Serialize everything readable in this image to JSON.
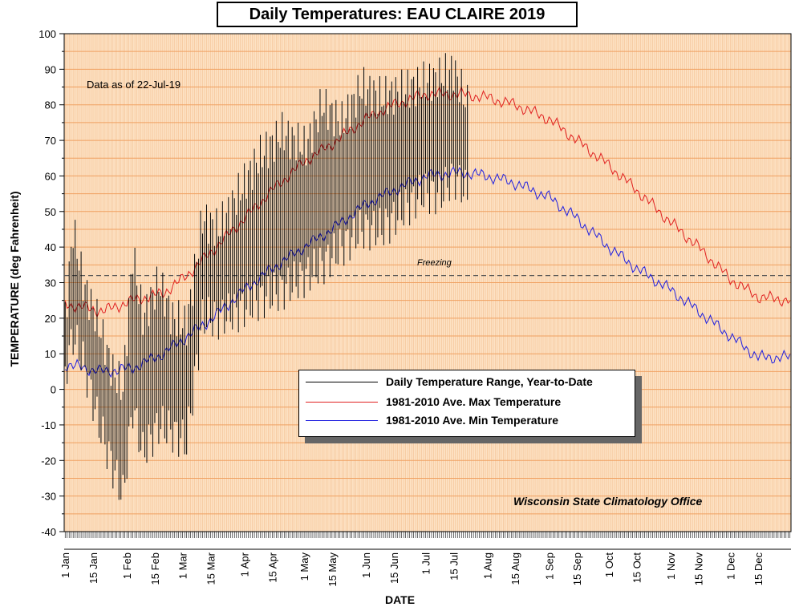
{
  "chart_data": {
    "type": "line",
    "title": "Daily Temperatures: EAU CLAIRE 2019",
    "subtitle": "Data as of 22-Jul-19",
    "xlabel": "DATE",
    "ylabel": "TEMPERATURE (deg Fahrenheit)",
    "ylim": [
      -40,
      100
    ],
    "yticks": [
      -40,
      -30,
      -20,
      -10,
      0,
      10,
      20,
      30,
      40,
      50,
      60,
      70,
      80,
      90,
      100
    ],
    "xtick_labels": [
      "1 Jan",
      "15 Jan",
      "1 Feb",
      "15 Feb",
      "1 Mar",
      "15 Mar",
      "1 Apr",
      "15 Apr",
      "1 May",
      "15 May",
      "1 Jun",
      "15 Jun",
      "1 Jul",
      "15 Jul",
      "1 Aug",
      "15 Aug",
      "1 Sep",
      "15 Sep",
      "1 Oct",
      "15 Oct",
      "1 Nov",
      "15 Nov",
      "1 Dec",
      "15 Dec"
    ],
    "xtick_days": [
      1,
      15,
      32,
      46,
      60,
      74,
      91,
      105,
      121,
      135,
      152,
      166,
      182,
      196,
      213,
      227,
      244,
      258,
      274,
      288,
      305,
      319,
      335,
      349
    ],
    "grid": true,
    "legend_position": "center-right",
    "reference_line": {
      "label": "Freezing",
      "value": 32,
      "color": "#555555"
    },
    "series": [
      {
        "name": "Daily Temperature Range, Year-to-Date",
        "color": "#000000",
        "kind": "range",
        "keypoints": [
          {
            "day": 1,
            "min": 5,
            "max": 20
          },
          {
            "day": 5,
            "min": 15,
            "max": 45
          },
          {
            "day": 10,
            "min": 8,
            "max": 30
          },
          {
            "day": 18,
            "min": -10,
            "max": 18
          },
          {
            "day": 25,
            "min": -22,
            "max": 5
          },
          {
            "day": 30,
            "min": -30,
            "max": 0
          },
          {
            "day": 35,
            "min": -5,
            "max": 38
          },
          {
            "day": 40,
            "min": -18,
            "max": 20
          },
          {
            "day": 48,
            "min": -10,
            "max": 30
          },
          {
            "day": 55,
            "min": -12,
            "max": 20
          },
          {
            "day": 62,
            "min": -15,
            "max": 18
          },
          {
            "day": 70,
            "min": 20,
            "max": 48
          },
          {
            "day": 78,
            "min": 20,
            "max": 45
          },
          {
            "day": 88,
            "min": 22,
            "max": 55
          },
          {
            "day": 98,
            "min": 25,
            "max": 65
          },
          {
            "day": 110,
            "min": 28,
            "max": 72
          },
          {
            "day": 122,
            "min": 32,
            "max": 68
          },
          {
            "day": 130,
            "min": 35,
            "max": 80
          },
          {
            "day": 140,
            "min": 40,
            "max": 75
          },
          {
            "day": 150,
            "min": 45,
            "max": 85
          },
          {
            "day": 160,
            "min": 45,
            "max": 82
          },
          {
            "day": 170,
            "min": 50,
            "max": 84
          },
          {
            "day": 180,
            "min": 55,
            "max": 86
          },
          {
            "day": 190,
            "min": 55,
            "max": 88
          },
          {
            "day": 196,
            "min": 60,
            "max": 90
          },
          {
            "day": 203,
            "min": 55,
            "max": 80
          }
        ]
      },
      {
        "name": "1981-2010 Ave. Max Temperature",
        "color": "#e02020",
        "keypoints": [
          {
            "day": 1,
            "value": 24
          },
          {
            "day": 20,
            "value": 22
          },
          {
            "day": 35,
            "value": 25
          },
          {
            "day": 50,
            "value": 27
          },
          {
            "day": 60,
            "value": 31
          },
          {
            "day": 75,
            "value": 39
          },
          {
            "day": 91,
            "value": 48
          },
          {
            "day": 105,
            "value": 56
          },
          {
            "day": 121,
            "value": 64
          },
          {
            "day": 135,
            "value": 69
          },
          {
            "day": 152,
            "value": 76
          },
          {
            "day": 166,
            "value": 80
          },
          {
            "day": 182,
            "value": 83
          },
          {
            "day": 200,
            "value": 83
          },
          {
            "day": 213,
            "value": 82
          },
          {
            "day": 227,
            "value": 80
          },
          {
            "day": 244,
            "value": 76
          },
          {
            "day": 258,
            "value": 70
          },
          {
            "day": 274,
            "value": 63
          },
          {
            "day": 288,
            "value": 56
          },
          {
            "day": 305,
            "value": 47
          },
          {
            "day": 319,
            "value": 40
          },
          {
            "day": 335,
            "value": 31
          },
          {
            "day": 349,
            "value": 26
          },
          {
            "day": 365,
            "value": 25
          }
        ]
      },
      {
        "name": "1981-2010 Ave. Min Temperature",
        "color": "#2020e0",
        "keypoints": [
          {
            "day": 1,
            "value": 7
          },
          {
            "day": 20,
            "value": 5
          },
          {
            "day": 35,
            "value": 6
          },
          {
            "day": 50,
            "value": 10
          },
          {
            "day": 60,
            "value": 14
          },
          {
            "day": 75,
            "value": 20
          },
          {
            "day": 91,
            "value": 28
          },
          {
            "day": 105,
            "value": 34
          },
          {
            "day": 121,
            "value": 40
          },
          {
            "day": 135,
            "value": 45
          },
          {
            "day": 152,
            "value": 52
          },
          {
            "day": 166,
            "value": 56
          },
          {
            "day": 182,
            "value": 60
          },
          {
            "day": 200,
            "value": 61
          },
          {
            "day": 213,
            "value": 60
          },
          {
            "day": 227,
            "value": 58
          },
          {
            "day": 244,
            "value": 54
          },
          {
            "day": 258,
            "value": 48
          },
          {
            "day": 274,
            "value": 40
          },
          {
            "day": 288,
            "value": 34
          },
          {
            "day": 305,
            "value": 28
          },
          {
            "day": 319,
            "value": 22
          },
          {
            "day": 335,
            "value": 15
          },
          {
            "day": 349,
            "value": 9
          },
          {
            "day": 365,
            "value": 9
          }
        ]
      }
    ]
  },
  "footer": {
    "credit": "Wisconsin State Climatology Office"
  },
  "colors": {
    "plot_bg": "#fde2c4",
    "grid_major": "#f0a060",
    "grid_minor": "#f3bf90"
  }
}
